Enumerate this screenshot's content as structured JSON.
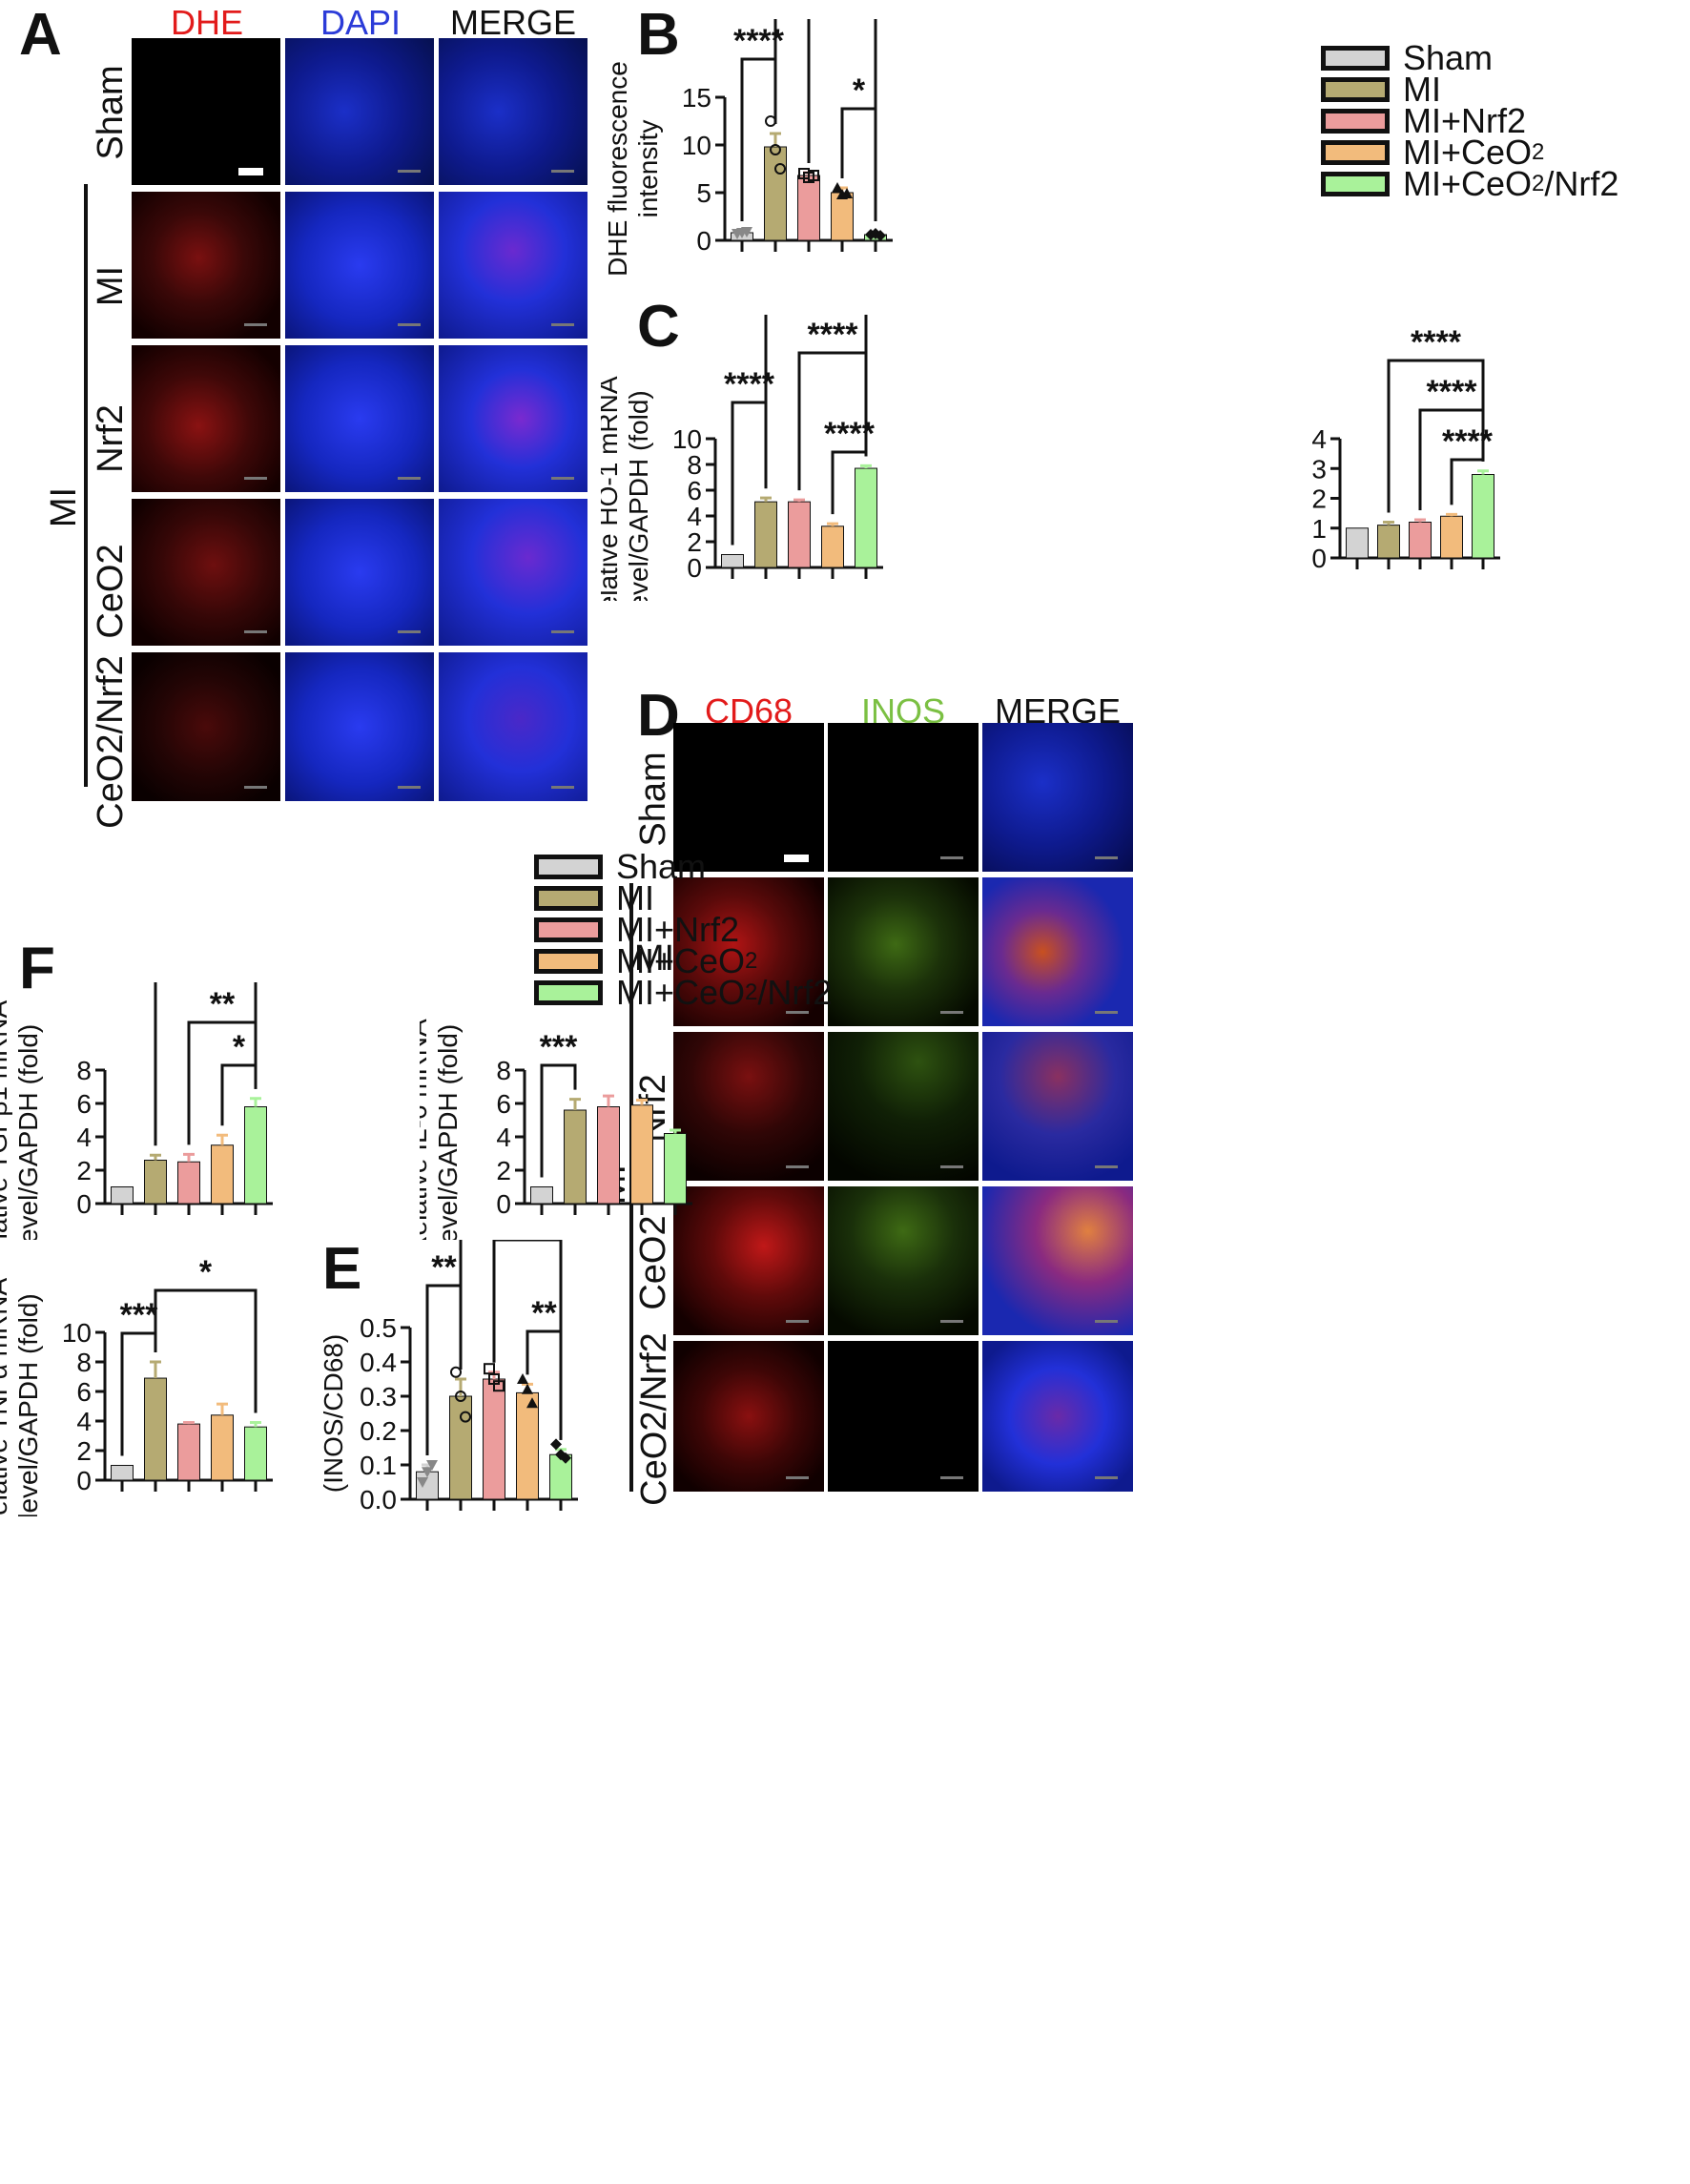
{
  "panels": {
    "a": "A",
    "b": "B",
    "c": "C",
    "d": "D",
    "e": "E",
    "f": "F"
  },
  "colors": {
    "sham": "#d3d3d3",
    "mi": "#b5aa72",
    "nrf2": "#eb9c9c",
    "ceo2": "#f2bb7c",
    "combo": "#a9f29a",
    "dhe": "#e21b1b",
    "dapi": "#2b3bd8",
    "inos": "#7bc043"
  },
  "legend": [
    {
      "label": "Sham",
      "sub": "",
      "after": "",
      "color": "#d3d3d3"
    },
    {
      "label": "MI",
      "sub": "",
      "after": "",
      "color": "#b5aa72"
    },
    {
      "label": "MI+Nrf2",
      "sub": "",
      "after": "",
      "color": "#eb9c9c"
    },
    {
      "label": "MI+CeO",
      "sub": "2",
      "after": "",
      "color": "#f2bb7c"
    },
    {
      "label": "MI+CeO",
      "sub": "2",
      "after": "/Nrf2",
      "color": "#a9f29a"
    }
  ],
  "panel_a": {
    "columns": [
      "DHE",
      "DAPI",
      "MERGE"
    ],
    "rows": [
      "Sham",
      "MI",
      "Nrf2",
      "CeO2",
      "CeO2/Nrf2"
    ],
    "group": "MI"
  },
  "panel_d": {
    "columns": [
      "CD68",
      "INOS",
      "MERGE"
    ],
    "rows": [
      "Sham",
      "MI",
      "Nrf2",
      "CeO2",
      "CeO2/Nrf2"
    ],
    "group": "MI"
  },
  "chart_data": [
    {
      "id": "B",
      "type": "bar",
      "categories": [
        "Sham",
        "MI",
        "MI+Nrf2",
        "MI+CeO2",
        "MI+CeO2/Nrf2"
      ],
      "values": [
        0.8,
        9.8,
        6.8,
        5.0,
        0.6
      ],
      "errors": [
        0.1,
        1.4,
        0.3,
        0.5,
        0.15
      ],
      "points": [
        [
          0.7,
          0.8,
          0.9
        ],
        [
          12.5,
          9.5,
          7.5
        ],
        [
          7.0,
          6.6,
          6.8
        ],
        [
          5.5,
          4.8,
          4.9
        ],
        [
          0.6,
          0.7,
          0.5
        ]
      ],
      "ylabel": "DHE fluorescence intensity",
      "ylim": [
        0,
        15
      ],
      "yticks": [
        0,
        5,
        10,
        15
      ],
      "significance": [
        {
          "from": 0,
          "to": 1,
          "label": "****"
        },
        {
          "from": 1,
          "to": 4,
          "label": "****"
        },
        {
          "from": 2,
          "to": 4,
          "label": "***"
        },
        {
          "from": 3,
          "to": 4,
          "label": "*"
        }
      ]
    },
    {
      "id": "C-HO1",
      "type": "bar",
      "categories": [
        "Sham",
        "MI",
        "MI+Nrf2",
        "MI+CeO2",
        "MI+CeO2/Nrf2"
      ],
      "values": [
        1.0,
        5.1,
        5.1,
        3.2,
        7.7
      ],
      "errors": [
        0,
        0.3,
        0.15,
        0.2,
        0.2
      ],
      "ylabel": "Relative HO-1 mRNA level/GAPDH (fold)",
      "ylim": [
        0,
        10
      ],
      "yticks": [
        0,
        2,
        4,
        6,
        8,
        10
      ],
      "significance": [
        {
          "from": 0,
          "to": 1,
          "label": "****"
        },
        {
          "from": 1,
          "to": 4,
          "label": "****"
        },
        {
          "from": 2,
          "to": 4,
          "label": "****"
        },
        {
          "from": 3,
          "to": 4,
          "label": "****"
        }
      ]
    },
    {
      "id": "C-NQO1",
      "type": "bar",
      "categories": [
        "Sham",
        "MI",
        "MI+Nrf2",
        "MI+CeO2",
        "MI+CeO2/Nrf2"
      ],
      "values": [
        1.0,
        1.1,
        1.2,
        1.4,
        2.8
      ],
      "errors": [
        0,
        0.1,
        0.08,
        0.06,
        0.12
      ],
      "ylabel": "Relative NQO-1 mRNA level/GAPDH (fold)",
      "ylim": [
        0,
        4
      ],
      "yticks": [
        0,
        1,
        2,
        3,
        4
      ],
      "significance": [
        {
          "from": 1,
          "to": 4,
          "label": "****"
        },
        {
          "from": 2,
          "to": 4,
          "label": "****"
        },
        {
          "from": 3,
          "to": 4,
          "label": "****"
        }
      ]
    },
    {
      "id": "F-TGFb1",
      "type": "bar",
      "categories": [
        "Sham",
        "MI",
        "MI+Nrf2",
        "MI+CeO2",
        "MI+CeO2/Nrf2"
      ],
      "values": [
        1.0,
        2.6,
        2.5,
        3.5,
        5.8
      ],
      "errors": [
        0,
        0.3,
        0.45,
        0.6,
        0.5
      ],
      "ylabel": "Relative TGFβ1 mRNA level/GAPDH (fold)",
      "ylim": [
        0,
        8
      ],
      "yticks": [
        0,
        2,
        4,
        6,
        8
      ],
      "significance": [
        {
          "from": 1,
          "to": 4,
          "label": "**"
        },
        {
          "from": 2,
          "to": 4,
          "label": "**"
        },
        {
          "from": 3,
          "to": 4,
          "label": "*"
        }
      ]
    },
    {
      "id": "F-IL6",
      "type": "bar",
      "categories": [
        "Sham",
        "MI",
        "MI+Nrf2",
        "MI+CeO2",
        "MI+CeO2/Nrf2"
      ],
      "values": [
        1.0,
        5.6,
        5.8,
        5.9,
        4.2
      ],
      "errors": [
        0,
        0.65,
        0.65,
        0.3,
        0.2
      ],
      "ylabel": "Relative IL-6 mRNA level/GAPDH (fold)",
      "ylim": [
        0,
        8
      ],
      "yticks": [
        0,
        2,
        4,
        6,
        8
      ],
      "significance": [
        {
          "from": 0,
          "to": 1,
          "label": "***"
        }
      ]
    },
    {
      "id": "F-TNFa",
      "type": "bar",
      "categories": [
        "Sham",
        "MI",
        "MI+Nrf2",
        "MI+CeO2",
        "MI+CeO2/Nrf2"
      ],
      "values": [
        1.0,
        6.9,
        3.8,
        4.4,
        3.6
      ],
      "errors": [
        0,
        1.1,
        0.1,
        0.75,
        0.3
      ],
      "ylabel": "Relative TNFα mRNA level/GAPDH (fold)",
      "ylim": [
        0,
        10
      ],
      "yticks": [
        0,
        2,
        4,
        6,
        8,
        10
      ],
      "significance": [
        {
          "from": 0,
          "to": 1,
          "label": "***"
        },
        {
          "from": 1,
          "to": 4,
          "label": "*"
        }
      ]
    },
    {
      "id": "E",
      "type": "bar",
      "categories": [
        "Sham",
        "MI",
        "MI+Nrf2",
        "MI+CeO2",
        "MI+CeO2/Nrf2"
      ],
      "values": [
        0.08,
        0.3,
        0.35,
        0.31,
        0.13
      ],
      "errors": [
        0.02,
        0.05,
        0.02,
        0.025,
        0.015
      ],
      "points": [
        [
          0.05,
          0.08,
          0.1
        ],
        [
          0.37,
          0.3,
          0.24
        ],
        [
          0.38,
          0.35,
          0.33
        ],
        [
          0.35,
          0.32,
          0.28
        ],
        [
          0.16,
          0.13,
          0.12
        ]
      ],
      "ylabel": "Pearson correlation (INOS/CD68)",
      "ylim": [
        0,
        0.5
      ],
      "yticks": [
        0.0,
        0.1,
        0.2,
        0.3,
        0.4,
        0.5
      ],
      "significance": [
        {
          "from": 0,
          "to": 1,
          "label": "**"
        },
        {
          "from": 1,
          "to": 4,
          "label": "**"
        },
        {
          "from": 2,
          "to": 4,
          "label": "**"
        },
        {
          "from": 3,
          "to": 4,
          "label": "**"
        }
      ]
    }
  ]
}
